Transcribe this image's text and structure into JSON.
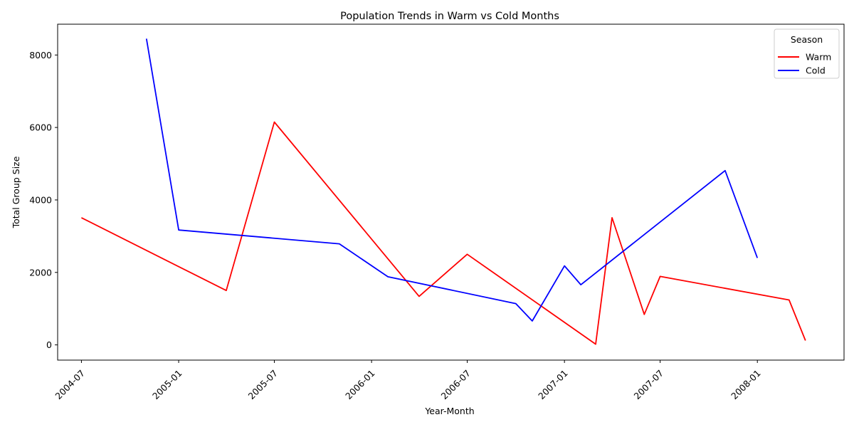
{
  "chart_data": {
    "type": "line",
    "title": "Population Trends in Warm vs Cold Months",
    "xlabel": "Year-Month",
    "ylabel": "Total Group Size",
    "x_ticks": [
      "2004-07",
      "2005-01",
      "2005-07",
      "2006-01",
      "2006-07",
      "2007-01",
      "2007-07",
      "2008-01"
    ],
    "y_ticks": [
      0,
      2000,
      4000,
      6000,
      8000
    ],
    "xlim": [
      "2004-05-17",
      "2008-06-13"
    ],
    "ylim": [
      -420,
      8850
    ],
    "grid": false,
    "legend": {
      "title": "Season",
      "position": "top-right"
    },
    "series": [
      {
        "name": "Warm",
        "color": "#ff0000",
        "points": [
          {
            "x": "2004-07-01",
            "y": 3510
          },
          {
            "x": "2005-04-01",
            "y": 1500
          },
          {
            "x": "2005-07-01",
            "y": 6150
          },
          {
            "x": "2006-04-01",
            "y": 1340
          },
          {
            "x": "2006-07-01",
            "y": 2500
          },
          {
            "x": "2007-03-01",
            "y": 20
          },
          {
            "x": "2007-04-01",
            "y": 3510
          },
          {
            "x": "2007-06-01",
            "y": 840
          },
          {
            "x": "2007-07-01",
            "y": 1890
          },
          {
            "x": "2008-03-01",
            "y": 1240
          },
          {
            "x": "2008-04-01",
            "y": 120
          }
        ]
      },
      {
        "name": "Cold",
        "color": "#0000ff",
        "points": [
          {
            "x": "2004-11-01",
            "y": 8450
          },
          {
            "x": "2005-01-01",
            "y": 3170
          },
          {
            "x": "2005-11-01",
            "y": 2790
          },
          {
            "x": "2006-02-01",
            "y": 1880
          },
          {
            "x": "2006-10-01",
            "y": 1140
          },
          {
            "x": "2006-11-01",
            "y": 660
          },
          {
            "x": "2007-01-01",
            "y": 2180
          },
          {
            "x": "2007-02-01",
            "y": 1660
          },
          {
            "x": "2007-11-01",
            "y": 4810
          },
          {
            "x": "2008-01-01",
            "y": 2400
          }
        ]
      }
    ]
  }
}
